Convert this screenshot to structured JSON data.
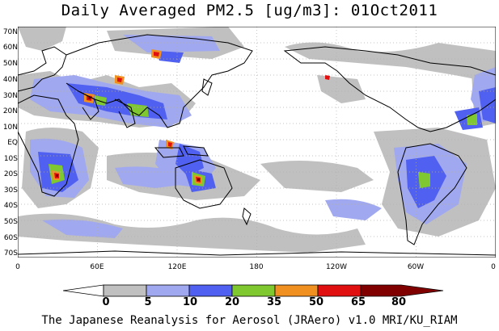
{
  "title": "Daily Averaged PM2.5 [ug/m3]: 01Oct2011",
  "footer": "The Japanese Reanalysis for Aerosol (JRAero) v1.0 MRI/KU_RIAM",
  "lat_labels": [
    "70N",
    "60N",
    "50N",
    "40N",
    "30N",
    "20N",
    "10N",
    "EQ",
    "10S",
    "20S",
    "30S",
    "40S",
    "50S",
    "60S",
    "70S"
  ],
  "lon_labels": [
    "0",
    "60E",
    "120E",
    "180",
    "120W",
    "60W",
    "0"
  ],
  "colorbar": {
    "labels": [
      "0",
      "5",
      "10",
      "20",
      "35",
      "50",
      "65",
      "80"
    ],
    "colors": [
      "#ffffff",
      "#c0c0c0",
      "#a0a8f0",
      "#5060f0",
      "#80c830",
      "#f09020",
      "#e01010",
      "#800000"
    ]
  },
  "colors": {
    "land_outline": "#000000",
    "grid": "#b0b0b0"
  }
}
